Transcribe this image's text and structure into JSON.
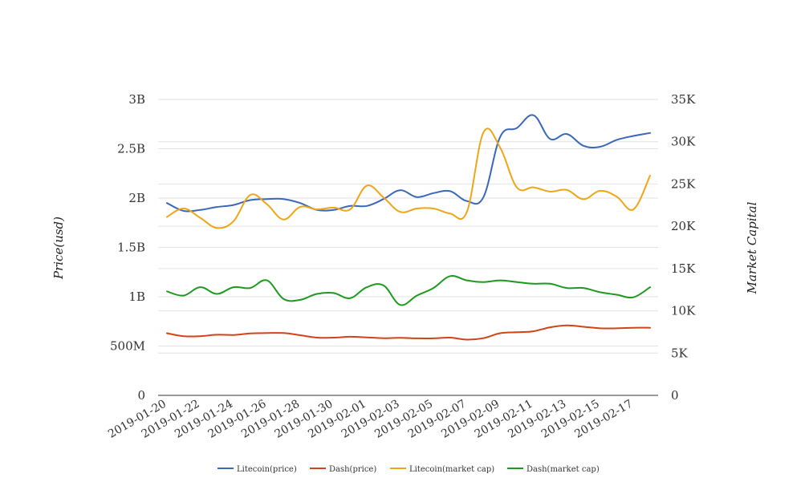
{
  "chart_data": {
    "type": "line",
    "x": [
      "2019-01-20",
      "2019-01-21",
      "2019-01-22",
      "2019-01-23",
      "2019-01-24",
      "2019-01-25",
      "2019-01-26",
      "2019-01-27",
      "2019-01-28",
      "2019-01-29",
      "2019-01-30",
      "2019-01-31",
      "2019-02-01",
      "2019-02-02",
      "2019-02-03",
      "2019-02-04",
      "2019-02-05",
      "2019-02-06",
      "2019-02-07",
      "2019-02-08",
      "2019-02-09",
      "2019-02-10",
      "2019-02-11",
      "2019-02-12",
      "2019-02-13",
      "2019-02-14",
      "2019-02-15",
      "2019-02-16",
      "2019-02-17",
      "2019-02-18"
    ],
    "x_tick_labels": [
      "2019-01-20",
      "2019-01-22",
      "2019-01-24",
      "2019-01-26",
      "2019-01-28",
      "2019-01-30",
      "2019-02-01",
      "2019-02-03",
      "2019-02-05",
      "2019-02-07",
      "2019-02-09",
      "2019-02-11",
      "2019-02-13",
      "2019-02-15",
      "2019-02-17"
    ],
    "ylabel": "Price(usd)",
    "ylabel_right": "Market Capital",
    "ylim": [
      0,
      3000000000
    ],
    "ylim_right": [
      0,
      35000
    ],
    "y_ticks": [
      {
        "value": 0,
        "label": "0"
      },
      {
        "value": 500000000,
        "label": "500M"
      },
      {
        "value": 1000000000,
        "label": "1B"
      },
      {
        "value": 1500000000,
        "label": "1.5B"
      },
      {
        "value": 2000000000,
        "label": "2B"
      },
      {
        "value": 2500000000,
        "label": "2.5B"
      },
      {
        "value": 3000000000,
        "label": "3B"
      }
    ],
    "y_ticks_right": [
      {
        "value": 0,
        "label": "0"
      },
      {
        "value": 5000,
        "label": "5K"
      },
      {
        "value": 10000,
        "label": "10K"
      },
      {
        "value": 15000,
        "label": "15K"
      },
      {
        "value": 20000,
        "label": "20K"
      },
      {
        "value": 25000,
        "label": "25K"
      },
      {
        "value": 30000,
        "label": "30K"
      },
      {
        "value": 35000,
        "label": "35K"
      }
    ],
    "legend_position": "bottom",
    "grid": true,
    "series": [
      {
        "name": "Litecoin(price)",
        "color": "#3a67b8",
        "axis": "left",
        "values": [
          1950000000,
          1870000000,
          1880000000,
          1910000000,
          1930000000,
          1980000000,
          1990000000,
          1990000000,
          1950000000,
          1880000000,
          1880000000,
          1920000000,
          1920000000,
          1990000000,
          2080000000,
          2010000000,
          2050000000,
          2070000000,
          1970000000,
          2010000000,
          2620000000,
          2710000000,
          2840000000,
          2600000000,
          2650000000,
          2530000000,
          2520000000,
          2590000000,
          2630000000,
          2660000000
        ]
      },
      {
        "name": "Dash(price)",
        "color": "#d2421b",
        "axis": "left",
        "values": [
          630000000,
          600000000,
          600000000,
          615000000,
          612000000,
          628000000,
          632000000,
          632000000,
          610000000,
          585000000,
          585000000,
          594000000,
          588000000,
          580000000,
          583000000,
          578000000,
          578000000,
          585000000,
          565000000,
          580000000,
          630000000,
          640000000,
          650000000,
          690000000,
          710000000,
          695000000,
          680000000,
          680000000,
          685000000,
          685000000
        ]
      },
      {
        "name": "Litecoin(market cap)",
        "color": "#f0a516",
        "axis": "right",
        "values": [
          21100,
          22100,
          21000,
          19800,
          20600,
          23700,
          22600,
          20800,
          22300,
          22000,
          22200,
          22000,
          24800,
          23400,
          21700,
          22100,
          22100,
          21500,
          21700,
          31100,
          29300,
          24600,
          24600,
          24100,
          24300,
          23200,
          24200,
          23500,
          22000,
          26000
        ]
      },
      {
        "name": "Dash(market cap)",
        "color": "#1d9a1d",
        "axis": "right",
        "values": [
          12300,
          11800,
          12800,
          12000,
          12800,
          12700,
          13600,
          11400,
          11300,
          12000,
          12100,
          11500,
          12800,
          13000,
          10700,
          11800,
          12700,
          14100,
          13600,
          13400,
          13600,
          13400,
          13200,
          13200,
          12700,
          12700,
          12200,
          11900,
          11600,
          12800
        ]
      }
    ]
  }
}
